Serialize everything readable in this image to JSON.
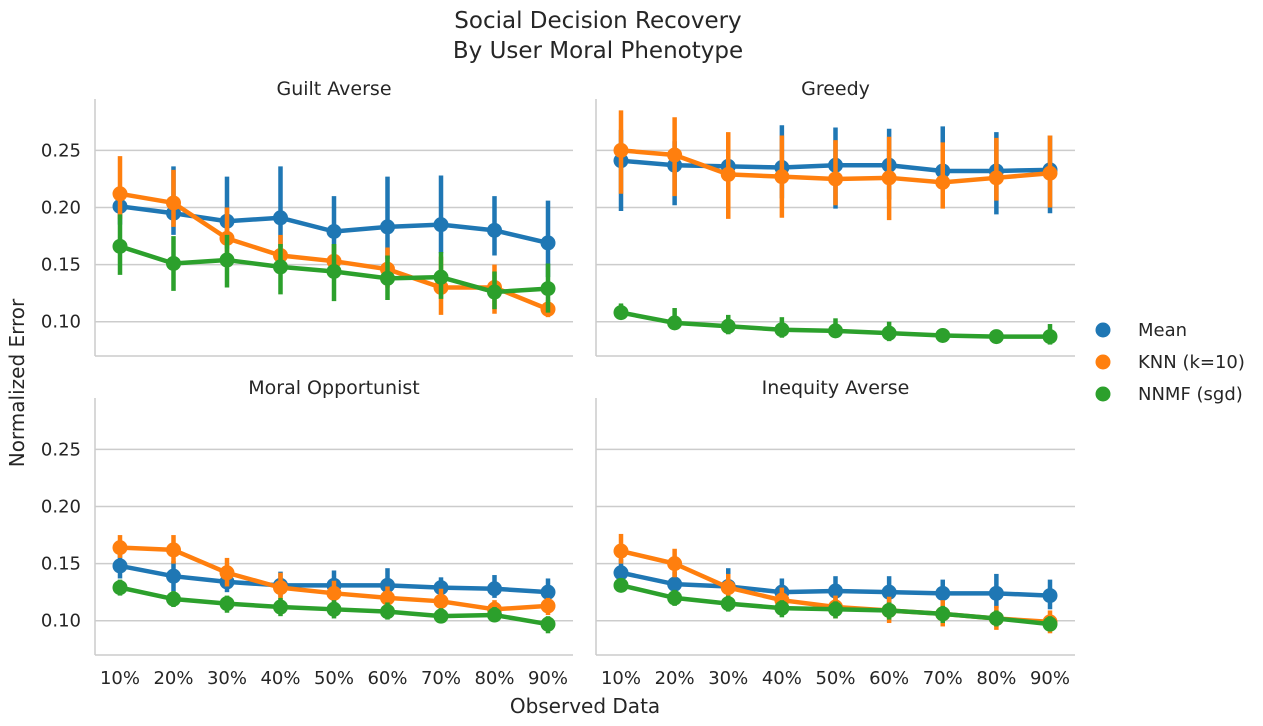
{
  "chart_data": {
    "type": "line",
    "title_lines": [
      "Social Decision Recovery",
      "By User Moral Phenotype"
    ],
    "xlabel": "Observed Data",
    "ylabel": "Normalized Error",
    "categories": [
      "10%",
      "20%",
      "30%",
      "40%",
      "50%",
      "60%",
      "70%",
      "80%",
      "90%"
    ],
    "ylim": [
      0.07,
      0.295
    ],
    "yticks": [
      0.1,
      0.15,
      0.2,
      0.25
    ],
    "ytick_labels": [
      "0.10",
      "0.15",
      "0.20",
      "0.25"
    ],
    "grid": "horizontal",
    "legend_placement": "right",
    "series_colors": [
      "#1f77b4",
      "#ff7f0e",
      "#2ca02c"
    ],
    "legend": [
      {
        "name": "Mean",
        "color": "#1f77b4"
      },
      {
        "name": "KNN (k=10)",
        "color": "#ff7f0e"
      },
      {
        "name": "NNMF (sgd)",
        "color": "#2ca02c"
      }
    ],
    "panels": [
      {
        "title": "Guilt Averse",
        "series": [
          {
            "name": "Mean",
            "values": [
              0.201,
              0.195,
              0.188,
              0.191,
              0.179,
              0.183,
              0.185,
              0.18,
              0.169
            ],
            "ci_low": [
              0.185,
              0.176,
              0.164,
              0.165,
              0.154,
              0.155,
              0.16,
              0.158,
              0.139
            ],
            "ci_high": [
              0.217,
              0.236,
              0.227,
              0.236,
              0.21,
              0.227,
              0.228,
              0.21,
              0.206
            ]
          },
          {
            "name": "KNN (k=10)",
            "values": [
              0.212,
              0.204,
              0.173,
              0.158,
              0.153,
              0.146,
              0.13,
              0.13,
              0.111
            ],
            "ci_low": [
              0.19,
              0.183,
              0.16,
              0.145,
              0.14,
              0.13,
              0.106,
              0.107,
              0.104
            ],
            "ci_high": [
              0.245,
              0.233,
              0.2,
              0.176,
              0.168,
              0.165,
              0.157,
              0.15,
              0.119
            ]
          },
          {
            "name": "NNMF (sgd)",
            "values": [
              0.166,
              0.151,
              0.154,
              0.148,
              0.144,
              0.138,
              0.139,
              0.126,
              0.129
            ],
            "ci_low": [
              0.141,
              0.127,
              0.13,
              0.124,
              0.118,
              0.119,
              0.12,
              0.111,
              0.108
            ],
            "ci_high": [
              0.194,
              0.175,
              0.176,
              0.168,
              0.168,
              0.158,
              0.161,
              0.144,
              0.151
            ]
          }
        ]
      },
      {
        "title": "Greedy",
        "series": [
          {
            "name": "Mean",
            "values": [
              0.241,
              0.237,
              0.236,
              0.235,
              0.237,
              0.237,
              0.232,
              0.232,
              0.233
            ],
            "ci_low": [
              0.197,
              0.202,
              0.21,
              0.208,
              0.199,
              0.207,
              0.204,
              0.194,
              0.195
            ],
            "ci_high": [
              0.268,
              0.258,
              0.262,
              0.272,
              0.27,
              0.269,
              0.271,
              0.266,
              0.263
            ]
          },
          {
            "name": "KNN (k=10)",
            "values": [
              0.25,
              0.246,
              0.229,
              0.227,
              0.225,
              0.226,
              0.222,
              0.226,
              0.23
            ],
            "ci_low": [
              0.212,
              0.21,
              0.19,
              0.191,
              0.202,
              0.189,
              0.199,
              0.206,
              0.2
            ],
            "ci_high": [
              0.285,
              0.279,
              0.266,
              0.263,
              0.259,
              0.262,
              0.257,
              0.261,
              0.263
            ]
          },
          {
            "name": "NNMF (sgd)",
            "values": [
              0.108,
              0.099,
              0.096,
              0.093,
              0.092,
              0.09,
              0.088,
              0.087,
              0.087
            ],
            "ci_low": [
              0.102,
              0.093,
              0.089,
              0.086,
              0.086,
              0.083,
              0.083,
              0.082,
              0.08
            ],
            "ci_high": [
              0.116,
              0.112,
              0.106,
              0.104,
              0.103,
              0.1,
              0.094,
              0.092,
              0.098
            ]
          }
        ]
      },
      {
        "title": "Moral Opportunist",
        "series": [
          {
            "name": "Mean",
            "values": [
              0.148,
              0.139,
              0.134,
              0.131,
              0.131,
              0.131,
              0.129,
              0.128,
              0.125
            ],
            "ci_low": [
              0.137,
              0.126,
              0.125,
              0.121,
              0.12,
              0.121,
              0.121,
              0.12,
              0.117
            ],
            "ci_high": [
              0.16,
              0.152,
              0.145,
              0.143,
              0.144,
              0.146,
              0.138,
              0.14,
              0.137
            ]
          },
          {
            "name": "KNN (k=10)",
            "values": [
              0.164,
              0.162,
              0.142,
              0.129,
              0.124,
              0.12,
              0.117,
              0.11,
              0.113
            ],
            "ci_low": [
              0.155,
              0.15,
              0.13,
              0.118,
              0.113,
              0.109,
              0.106,
              0.102,
              0.105
            ],
            "ci_high": [
              0.175,
              0.175,
              0.155,
              0.142,
              0.135,
              0.13,
              0.128,
              0.118,
              0.12
            ]
          },
          {
            "name": "NNMF (sgd)",
            "values": [
              0.129,
              0.119,
              0.115,
              0.112,
              0.11,
              0.108,
              0.104,
              0.105,
              0.097
            ],
            "ci_low": [
              0.122,
              0.112,
              0.107,
              0.104,
              0.102,
              0.101,
              0.098,
              0.099,
              0.089
            ],
            "ci_high": [
              0.136,
              0.126,
              0.122,
              0.12,
              0.118,
              0.116,
              0.111,
              0.112,
              0.104
            ]
          }
        ]
      },
      {
        "title": "Inequity Averse",
        "series": [
          {
            "name": "Mean",
            "values": [
              0.142,
              0.132,
              0.13,
              0.125,
              0.126,
              0.125,
              0.124,
              0.124,
              0.122
            ],
            "ci_low": [
              0.132,
              0.122,
              0.119,
              0.115,
              0.115,
              0.115,
              0.114,
              0.111,
              0.11
            ],
            "ci_high": [
              0.154,
              0.143,
              0.146,
              0.137,
              0.139,
              0.139,
              0.136,
              0.141,
              0.136
            ]
          },
          {
            "name": "KNN (k=10)",
            "values": [
              0.161,
              0.15,
              0.129,
              0.118,
              0.112,
              0.109,
              0.106,
              0.102,
              0.099
            ],
            "ci_low": [
              0.15,
              0.138,
              0.118,
              0.108,
              0.102,
              0.098,
              0.095,
              0.092,
              0.089
            ],
            "ci_high": [
              0.176,
              0.163,
              0.141,
              0.129,
              0.122,
              0.121,
              0.118,
              0.113,
              0.109
            ]
          },
          {
            "name": "NNMF (sgd)",
            "values": [
              0.131,
              0.12,
              0.115,
              0.111,
              0.11,
              0.109,
              0.106,
              0.102,
              0.097
            ],
            "ci_low": [
              0.125,
              0.113,
              0.108,
              0.103,
              0.102,
              0.101,
              0.098,
              0.095,
              0.091
            ],
            "ci_high": [
              0.137,
              0.127,
              0.122,
              0.118,
              0.117,
              0.116,
              0.113,
              0.109,
              0.104
            ]
          }
        ]
      }
    ]
  }
}
